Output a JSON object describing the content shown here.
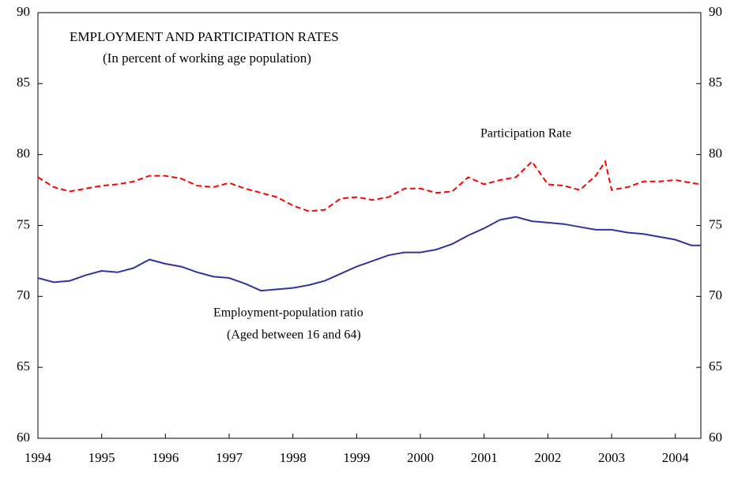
{
  "chart_data": {
    "type": "line",
    "title": "EMPLOYMENT AND PARTICIPATION RATES",
    "subtitle": "(In percent of working age population)",
    "annotations": [
      "Participation Rate",
      "Employment-population ratio",
      "(Aged between 16 and 64)"
    ],
    "x": [
      1994.0,
      1994.25,
      1994.5,
      1994.75,
      1995.0,
      1995.25,
      1995.5,
      1995.75,
      1996.0,
      1996.25,
      1996.5,
      1996.75,
      1997.0,
      1997.25,
      1997.5,
      1997.75,
      1998.0,
      1998.25,
      1998.5,
      1998.75,
      1999.0,
      1999.25,
      1999.5,
      1999.75,
      2000.0,
      2000.25,
      2000.5,
      2000.75,
      2001.0,
      2001.25,
      2001.5,
      2001.75,
      2002.0,
      2002.25,
      2002.5,
      2002.75,
      2002.9,
      2003.0,
      2003.25,
      2003.5,
      2003.75,
      2004.0,
      2004.25,
      2004.4
    ],
    "series": [
      {
        "name": "Participation Rate",
        "color": "#ff0000",
        "dash": true,
        "values": [
          78.4,
          77.7,
          77.4,
          77.6,
          77.8,
          77.9,
          78.1,
          78.5,
          78.5,
          78.3,
          77.8,
          77.7,
          78.0,
          77.6,
          77.3,
          77.0,
          76.4,
          76.0,
          76.1,
          76.9,
          77.0,
          76.8,
          77.0,
          77.6,
          77.6,
          77.3,
          77.4,
          78.4,
          77.9,
          78.2,
          78.4,
          79.5,
          77.9,
          77.8,
          77.5,
          78.5,
          79.5,
          77.5,
          77.7,
          78.1,
          78.1,
          78.2,
          78.0,
          77.9
        ]
      },
      {
        "name": "Employment-population ratio",
        "color": "#333399",
        "dash": false,
        "values": [
          71.3,
          71.0,
          71.1,
          71.5,
          71.8,
          71.7,
          72.0,
          72.6,
          72.3,
          72.1,
          71.7,
          71.4,
          71.3,
          70.9,
          70.4,
          70.5,
          70.6,
          70.8,
          71.1,
          71.6,
          72.1,
          72.5,
          72.9,
          73.1,
          73.1,
          73.3,
          73.7,
          74.3,
          74.8,
          75.4,
          75.6,
          75.3,
          75.2,
          75.1,
          74.9,
          74.7,
          74.7,
          74.7,
          74.5,
          74.4,
          74.2,
          74.0,
          73.6,
          73.6
        ]
      }
    ],
    "xlim": [
      1994,
      2004.4
    ],
    "xticks": [
      1994,
      1995,
      1996,
      1997,
      1998,
      1999,
      2000,
      2001,
      2002,
      2003,
      2004
    ],
    "ylim": [
      60,
      90
    ],
    "yticks": [
      60,
      65,
      70,
      75,
      80,
      85,
      90
    ],
    "y2lim": [
      60,
      90
    ],
    "y2ticks": [
      60,
      65,
      70,
      75,
      80,
      85,
      90
    ]
  }
}
